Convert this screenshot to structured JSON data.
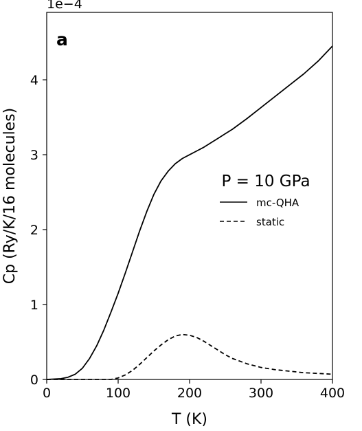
{
  "chart_data": {
    "type": "line",
    "panel_label": "a",
    "xlabel": "T (K)",
    "ylabel": "Cp (Ry/K/16 molecules)",
    "y_offset_label": "1e−4",
    "xlim": [
      0,
      400
    ],
    "ylim": [
      0,
      4.9
    ],
    "x_ticks": [
      0,
      100,
      200,
      300,
      400
    ],
    "x_tick_labels": [
      "0",
      "100",
      "200",
      "300",
      "400"
    ],
    "y_ticks": [
      0,
      1,
      2,
      3,
      4
    ],
    "y_tick_labels": [
      "0",
      "1",
      "2",
      "3",
      "4"
    ],
    "grid": false,
    "legend": {
      "title": "P = 10 GPa",
      "placement": "center-right"
    },
    "series": [
      {
        "name": "mc-QHA",
        "style": "solid",
        "color": "#000000",
        "x": [
          0,
          20,
          30,
          40,
          50,
          60,
          70,
          80,
          90,
          100,
          110,
          120,
          130,
          140,
          150,
          160,
          170,
          180,
          190,
          200,
          210,
          220,
          230,
          240,
          250,
          260,
          280,
          300,
          320,
          340,
          360,
          380,
          400
        ],
        "y": [
          0,
          0.01,
          0.03,
          0.07,
          0.15,
          0.28,
          0.45,
          0.66,
          0.9,
          1.15,
          1.42,
          1.7,
          1.98,
          2.24,
          2.47,
          2.65,
          2.78,
          2.88,
          2.95,
          3.0,
          3.05,
          3.1,
          3.16,
          3.22,
          3.28,
          3.34,
          3.48,
          3.63,
          3.78,
          3.93,
          4.08,
          4.25,
          4.45
        ]
      },
      {
        "name": "static",
        "style": "dashed",
        "color": "#000000",
        "x": [
          0,
          90,
          100,
          110,
          120,
          130,
          140,
          150,
          160,
          170,
          180,
          190,
          200,
          210,
          220,
          230,
          240,
          250,
          260,
          280,
          300,
          320,
          340,
          360,
          380,
          400
        ],
        "y": [
          0,
          0,
          0.02,
          0.06,
          0.12,
          0.2,
          0.29,
          0.38,
          0.46,
          0.53,
          0.58,
          0.6,
          0.59,
          0.56,
          0.51,
          0.45,
          0.39,
          0.33,
          0.28,
          0.21,
          0.16,
          0.13,
          0.11,
          0.09,
          0.08,
          0.07
        ]
      }
    ]
  }
}
